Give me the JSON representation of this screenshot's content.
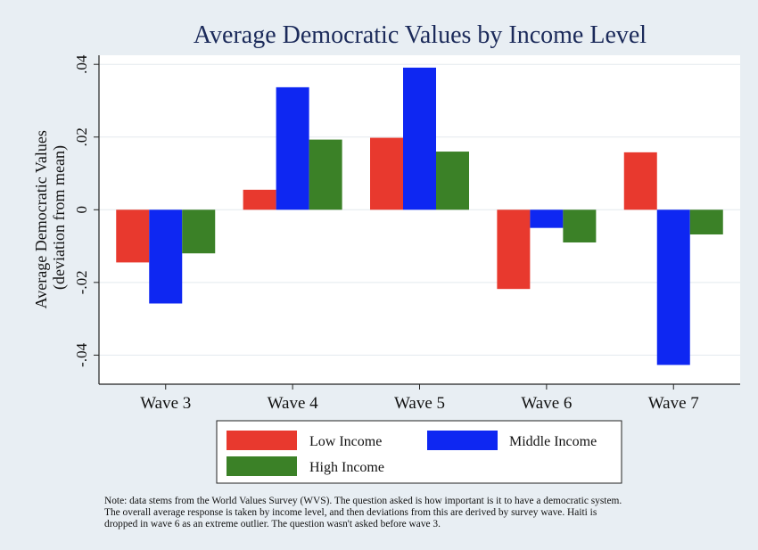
{
  "chart_data": {
    "type": "bar",
    "title": "Average Democratic Values by Income Level",
    "ylabel_lines": [
      "Average Democratic Values",
      "(deviation from mean)"
    ],
    "xlabel": "",
    "categories": [
      "Wave 3",
      "Wave 4",
      "Wave 5",
      "Wave 6",
      "Wave 7"
    ],
    "series": [
      {
        "name": "Low Income",
        "color": "#e8392e",
        "values": [
          -0.0145,
          0.0055,
          0.0198,
          -0.0218,
          0.0158
        ]
      },
      {
        "name": "Middle Income",
        "color": "#0e27f2",
        "values": [
          -0.0258,
          0.0337,
          0.0391,
          -0.005,
          -0.0427
        ]
      },
      {
        "name": "High Income",
        "color": "#3b8127",
        "values": [
          -0.012,
          0.0193,
          0.016,
          -0.009,
          -0.0068
        ]
      }
    ],
    "yticks": [
      -0.04,
      -0.02,
      0,
      0.02,
      0.04
    ],
    "ytick_labels": [
      "-.04",
      "-.02",
      "0",
      ".02",
      ".04"
    ],
    "ylim": [
      -0.048,
      0.0425
    ],
    "grid": true,
    "legend_position": "bottom"
  },
  "note_lines": [
    "Note: data stems from the World Values Survey (WVS). The question asked is how important is it to have a democratic system.",
    "The overall average response is taken by income level, and then deviations from this are derived by survey wave. Haiti is",
    "dropped in wave 6 as an extreme outlier. The question wasn't asked before wave 3."
  ],
  "colors": {
    "background": "#e8eef3",
    "plot_area": "#ffffff",
    "grid": "#e3e9ee",
    "title": "#1b2a5a"
  }
}
